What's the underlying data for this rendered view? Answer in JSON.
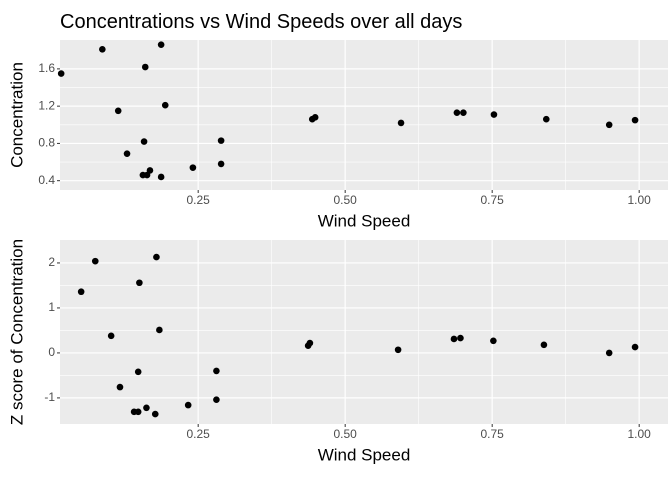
{
  "chart_data": [
    {
      "type": "scatter",
      "title": "Concentrations vs Wind Speeds over all days",
      "x_label": "Wind Speed",
      "y_label": "Concentration",
      "x": [
        0.017,
        0.087,
        0.187,
        0.16,
        0.114,
        0.194,
        0.129,
        0.158,
        0.168,
        0.156,
        0.163,
        0.187,
        0.241,
        0.289,
        0.289,
        0.444,
        0.449,
        0.595,
        0.69,
        0.701,
        0.753,
        0.842,
        0.949,
        0.993
      ],
      "values": [
        1.55,
        1.81,
        1.86,
        1.62,
        1.15,
        1.21,
        0.69,
        0.82,
        0.51,
        0.46,
        0.46,
        0.44,
        0.54,
        0.83,
        0.58,
        1.06,
        1.08,
        1.02,
        1.13,
        1.13,
        1.11,
        1.06,
        1.0,
        1.05
      ],
      "color": "#000000",
      "xlim": [
        0.015,
        1.049
      ],
      "ylim": [
        0.3,
        1.91
      ],
      "xticks": [
        {
          "value": 0.25,
          "label": "0.25"
        },
        {
          "value": 0.5,
          "label": "0.50"
        },
        {
          "value": 0.75,
          "label": "0.75"
        },
        {
          "value": 1.0,
          "label": "1.00"
        }
      ],
      "yticks": [
        0.4,
        0.8,
        1.2,
        1.6
      ],
      "grid": true,
      "minor_grid": true
    },
    {
      "type": "scatter",
      "x_label": "Wind Speed",
      "y_label": "Z score of Concentration",
      "x": [
        0.051,
        0.075,
        0.102,
        0.117,
        0.148,
        0.15,
        0.179,
        0.184,
        0.141,
        0.148,
        0.162,
        0.177,
        0.233,
        0.281,
        0.281,
        0.437,
        0.44,
        0.59,
        0.685,
        0.696,
        0.752,
        0.838,
        0.949,
        0.993
      ],
      "values": [
        1.36,
        2.04,
        0.38,
        -0.76,
        -0.42,
        1.56,
        2.13,
        0.51,
        -1.31,
        -1.31,
        -1.22,
        -1.36,
        -1.16,
        -0.4,
        -1.04,
        0.16,
        0.22,
        0.07,
        0.31,
        0.33,
        0.27,
        0.18,
        0.0,
        0.13
      ],
      "color": "#000000",
      "xlim": [
        0.015,
        1.049
      ],
      "ylim": [
        -1.58,
        2.51
      ],
      "xticks": [
        {
          "value": 0.25,
          "label": "0.25"
        },
        {
          "value": 0.5,
          "label": "0.50"
        },
        {
          "value": 0.75,
          "label": "0.75"
        },
        {
          "value": 1.0,
          "label": "1.00"
        }
      ],
      "yticks": [
        -1,
        0,
        1,
        2
      ],
      "grid": true,
      "minor_grid": true
    }
  ]
}
